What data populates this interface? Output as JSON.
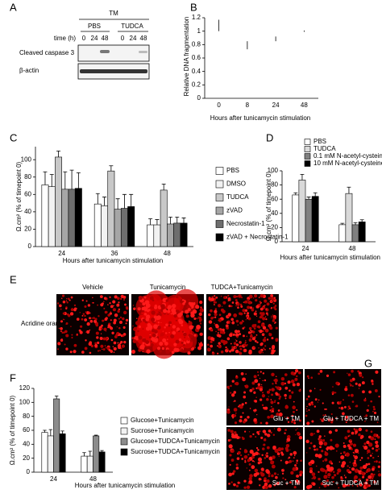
{
  "panel_labels": [
    "A",
    "B",
    "C",
    "D",
    "E",
    "F",
    "G"
  ],
  "blot": {
    "treatment": "TM",
    "groups": [
      "PBS",
      "TUDCA"
    ],
    "time_label": "time (h)",
    "times": [
      "0",
      "24",
      "48",
      "0",
      "24",
      "48"
    ],
    "rows": [
      "Cleaved caspase 3",
      "β-actin"
    ]
  },
  "chart_data": [
    {
      "type": "bar",
      "ylabel": "Relative DNA fragmentation",
      "xlabel": "Hours after tunicamycin stimulation",
      "categories": [
        "0",
        "8",
        "24",
        "48"
      ],
      "series": [
        {
          "color": "#000000",
          "values": [
            1.0,
            0.73,
            0.85,
            0.99
          ],
          "errors": [
            0.17,
            0.12,
            0.07,
            0.02
          ]
        }
      ],
      "ylim": [
        0,
        1.2
      ],
      "yticks": [
        0,
        0.2,
        0.4,
        0.6,
        0.8,
        1,
        1.2
      ],
      "grid": false
    },
    {
      "type": "bar",
      "ylabel": "Ω.cm² (% of timepoint 0)",
      "xlabel": "Hours after tunicamycin stimulation",
      "categories": [
        "24",
        "36",
        "48"
      ],
      "legend": "right",
      "series": [
        {
          "name": "PBS",
          "color": "#ffffff",
          "values": [
            71,
            49,
            25
          ],
          "errors": [
            15,
            12,
            7
          ]
        },
        {
          "name": "DMSO",
          "color": "#f2f2f2",
          "values": [
            69,
            47,
            25
          ],
          "errors": [
            14,
            10,
            6
          ]
        },
        {
          "name": "TUDCA",
          "color": "#c8c8c8",
          "values": [
            103,
            87,
            65
          ],
          "errors": [
            7,
            6,
            7
          ]
        },
        {
          "name": "zVAD",
          "color": "#a6a6a6",
          "values": [
            66,
            43,
            26
          ],
          "errors": [
            20,
            12,
            8
          ]
        },
        {
          "name": "Necrostatin-1",
          "color": "#6e6e6e",
          "values": [
            66,
            44,
            27
          ],
          "errors": [
            22,
            16,
            7
          ]
        },
        {
          "name": "zVAD + Necrostatin-1",
          "color": "#000000",
          "values": [
            67,
            46,
            27
          ],
          "errors": [
            18,
            14,
            6
          ]
        }
      ],
      "ylim": [
        0,
        115
      ],
      "yticks": [
        0,
        20,
        40,
        60,
        80,
        100
      ],
      "grid": false
    },
    {
      "type": "bar",
      "ylabel": "Ω.cm² (% of timepoint 0)",
      "xlabel": "Hours after tunicamycin  stimulation",
      "categories": [
        "24",
        "48"
      ],
      "legend": "top",
      "series": [
        {
          "name": "PBS",
          "color": "#ffffff",
          "values": [
            66,
            24
          ],
          "errors": [
            3,
            2
          ]
        },
        {
          "name": "TUDCA",
          "color": "#d9d9d9",
          "values": [
            87,
            68
          ],
          "errors": [
            8,
            9
          ]
        },
        {
          "name": "0.1 mM N-acetyl-cysteine",
          "color": "#808080",
          "values": [
            60,
            24
          ],
          "errors": [
            3,
            3
          ]
        },
        {
          "name": "10 mM N-acetyl-cysteine",
          "color": "#000000",
          "values": [
            64,
            28
          ],
          "errors": [
            5,
            3
          ]
        }
      ],
      "ylim": [
        0,
        100
      ],
      "yticks": [
        0,
        20,
        40,
        60,
        80,
        100
      ],
      "grid": false
    },
    {
      "type": "bar",
      "ylabel": "Ω.cm² (% of timepoint 0)",
      "xlabel": "Hours after tunicamycin stimulation",
      "categories": [
        "24",
        "48"
      ],
      "legend": "right",
      "series": [
        {
          "name": "Glucose+Tunicamycin",
          "color": "#ffffff",
          "values": [
            57,
            23
          ],
          "errors": [
            3,
            5
          ]
        },
        {
          "name": "Sucrose+Tunicamycin",
          "color": "#f2f2f2",
          "values": [
            52,
            23
          ],
          "errors": [
            9,
            7
          ]
        },
        {
          "name": "Glucose+TUDCA+Tunicamycin",
          "color": "#8c8c8c",
          "values": [
            105,
            52
          ],
          "errors": [
            4,
            1
          ]
        },
        {
          "name": "Sucrose+TUDCA+Tunicamycin",
          "color": "#000000",
          "values": [
            55,
            29
          ],
          "errors": [
            4,
            2
          ]
        }
      ],
      "ylim": [
        0,
        120
      ],
      "yticks": [
        0,
        20,
        40,
        60,
        80,
        100,
        120
      ],
      "grid": false
    }
  ],
  "microscopy_e": {
    "columns": [
      "Vehicle",
      "Tunicamycin",
      "TUDCA+Tunicamycin"
    ],
    "row_label": "Acridine orange"
  },
  "microscopy_g": {
    "labels": [
      "Glu + TM",
      "Glu + TUDCA + TM",
      "Suc + TM",
      "Suc + TUDCA + TM"
    ]
  }
}
